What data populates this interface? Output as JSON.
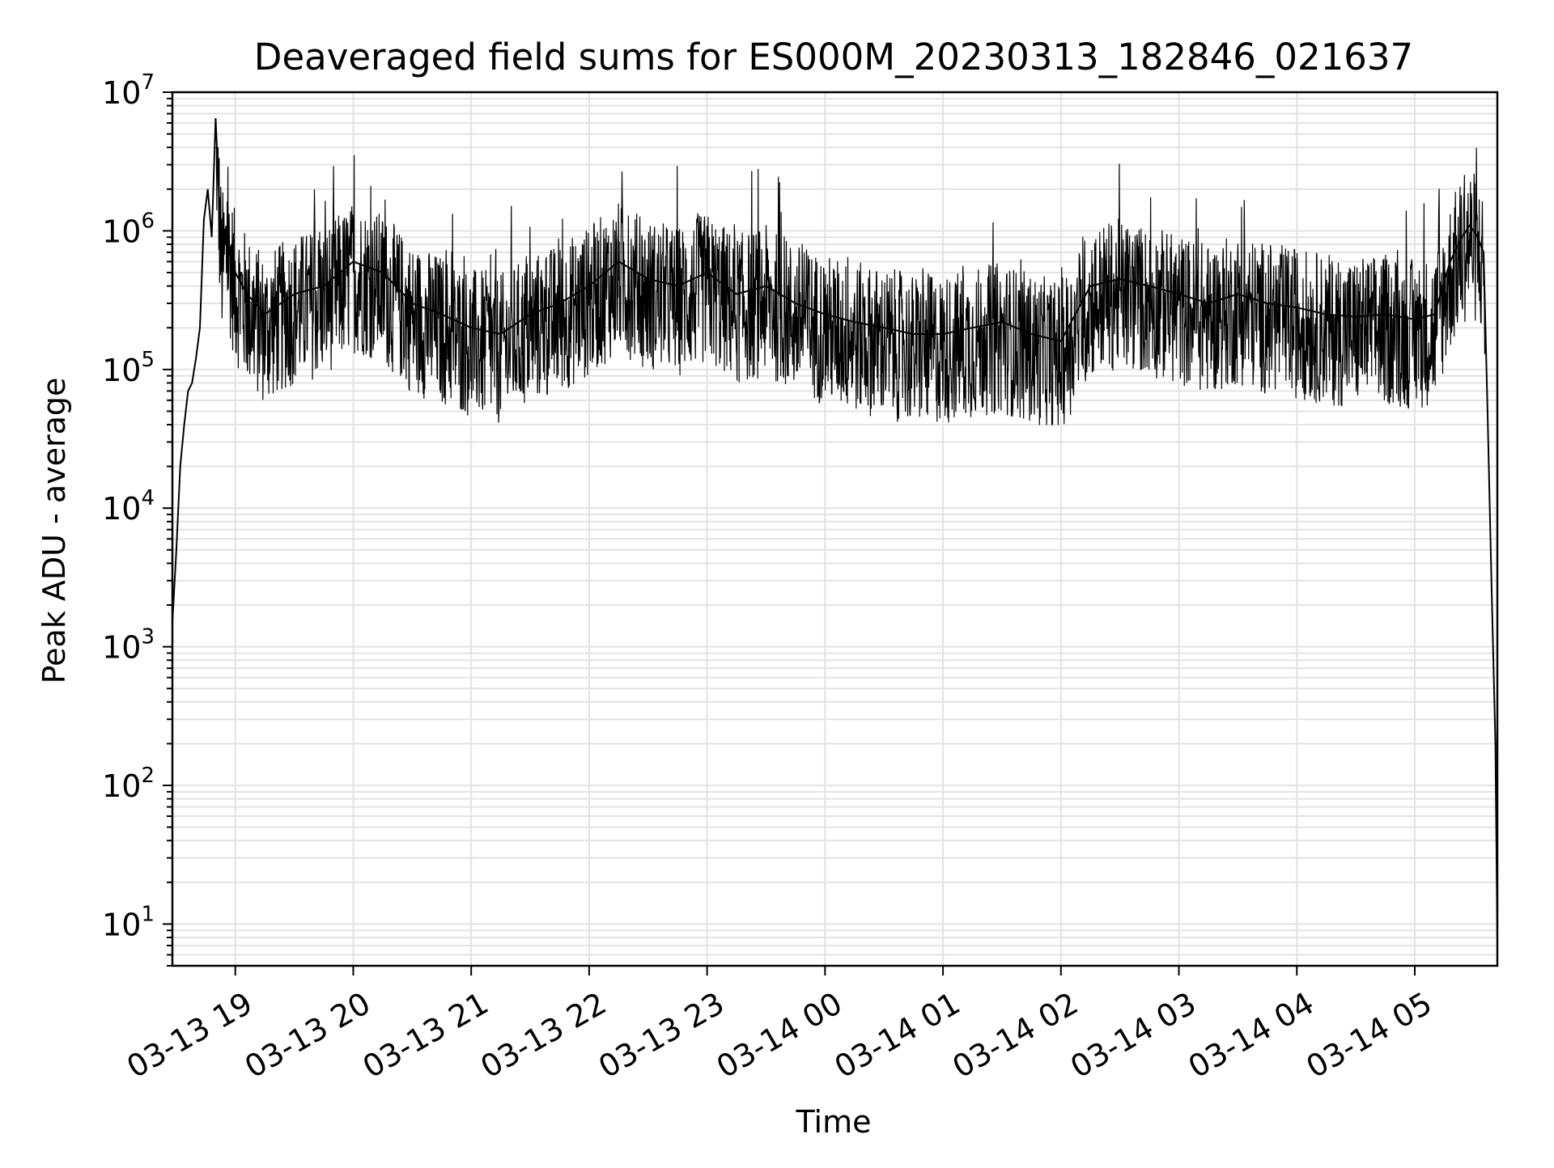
{
  "chart_data": {
    "type": "line",
    "title": "Deaveraged field sums for ES000M_20230313_182846_021637",
    "xlabel": "Time",
    "ylabel": "Peak ADU - average",
    "yscale": "log",
    "ylim": [
      5,
      10000000
    ],
    "xlim": [
      "2023-03-13 18:28",
      "2023-03-14 05:42"
    ],
    "grid": true,
    "legend": "none",
    "line_color": "#000000",
    "grid_color": "#e3e3e3",
    "x_ticks": [
      {
        "value": "2023-03-13 19:00",
        "label": "03-13 19"
      },
      {
        "value": "2023-03-13 20:00",
        "label": "03-13 20"
      },
      {
        "value": "2023-03-13 21:00",
        "label": "03-13 21"
      },
      {
        "value": "2023-03-13 22:00",
        "label": "03-13 22"
      },
      {
        "value": "2023-03-13 23:00",
        "label": "03-13 23"
      },
      {
        "value": "2023-03-14 00:00",
        "label": "03-14 00"
      },
      {
        "value": "2023-03-14 01:00",
        "label": "03-14 01"
      },
      {
        "value": "2023-03-14 02:00",
        "label": "03-14 02"
      },
      {
        "value": "2023-03-14 03:00",
        "label": "03-14 03"
      },
      {
        "value": "2023-03-14 04:00",
        "label": "03-14 04"
      },
      {
        "value": "2023-03-14 05:00",
        "label": "03-14 05"
      }
    ],
    "y_ticks": [
      {
        "value": 10,
        "base": "10",
        "exp": "1"
      },
      {
        "value": 100,
        "base": "10",
        "exp": "2"
      },
      {
        "value": 1000,
        "base": "10",
        "exp": "3"
      },
      {
        "value": 10000,
        "base": "10",
        "exp": "4"
      },
      {
        "value": 100000,
        "base": "10",
        "exp": "5"
      },
      {
        "value": 1000000,
        "base": "10",
        "exp": "6"
      },
      {
        "value": 10000000,
        "base": "10",
        "exp": "7"
      }
    ],
    "series": [
      {
        "x": [
          "2023-03-13 18:28",
          "2023-03-13 18:30",
          "2023-03-13 18:32",
          "2023-03-13 18:34",
          "2023-03-13 18:36",
          "2023-03-13 18:38",
          "2023-03-13 18:40",
          "2023-03-13 18:42",
          "2023-03-13 18:44",
          "2023-03-13 18:46",
          "2023-03-13 18:48",
          "2023-03-13 18:50",
          "2023-03-13 18:53",
          "2023-03-13 18:56",
          "2023-03-13 19:00",
          "2023-03-13 19:06",
          "2023-03-13 19:15",
          "2023-03-13 19:30",
          "2023-03-13 19:45",
          "2023-03-13 20:00",
          "2023-03-13 20:15",
          "2023-03-13 20:30",
          "2023-03-13 20:45",
          "2023-03-13 21:00",
          "2023-03-13 21:15",
          "2023-03-13 21:30",
          "2023-03-13 21:45",
          "2023-03-13 22:00",
          "2023-03-13 22:15",
          "2023-03-13 22:30",
          "2023-03-13 22:45",
          "2023-03-13 23:00",
          "2023-03-13 23:15",
          "2023-03-13 23:30",
          "2023-03-13 23:45",
          "2023-03-14 00:00",
          "2023-03-14 00:15",
          "2023-03-14 00:30",
          "2023-03-14 00:45",
          "2023-03-14 01:00",
          "2023-03-14 01:15",
          "2023-03-14 01:30",
          "2023-03-14 01:45",
          "2023-03-14 02:00",
          "2023-03-14 02:15",
          "2023-03-14 02:30",
          "2023-03-14 02:45",
          "2023-03-14 03:00",
          "2023-03-14 03:15",
          "2023-03-14 03:30",
          "2023-03-14 03:45",
          "2023-03-14 04:00",
          "2023-03-14 04:15",
          "2023-03-14 04:30",
          "2023-03-14 04:45",
          "2023-03-14 05:00",
          "2023-03-14 05:10",
          "2023-03-14 05:18",
          "2023-03-14 05:24",
          "2023-03-14 05:28",
          "2023-03-14 05:32",
          "2023-03-14 05:35",
          "2023-03-14 05:37",
          "2023-03-14 05:39",
          "2023-03-14 05:41",
          "2023-03-14 05:42"
        ],
        "y": [
          1500,
          5000,
          20000,
          40000,
          70000,
          80000,
          120000,
          200000,
          1200000,
          2000000,
          900000,
          6500000,
          700000,
          900000,
          500000,
          350000,
          250000,
          350000,
          400000,
          600000,
          500000,
          300000,
          250000,
          200000,
          180000,
          250000,
          300000,
          400000,
          600000,
          450000,
          400000,
          500000,
          350000,
          400000,
          300000,
          250000,
          220000,
          200000,
          180000,
          180000,
          200000,
          220000,
          180000,
          160000,
          400000,
          450000,
          400000,
          350000,
          300000,
          350000,
          300000,
          280000,
          250000,
          240000,
          250000,
          230000,
          250000,
          600000,
          900000,
          1100000,
          900000,
          700000,
          50000,
          3000,
          200,
          8
        ]
      }
    ]
  }
}
